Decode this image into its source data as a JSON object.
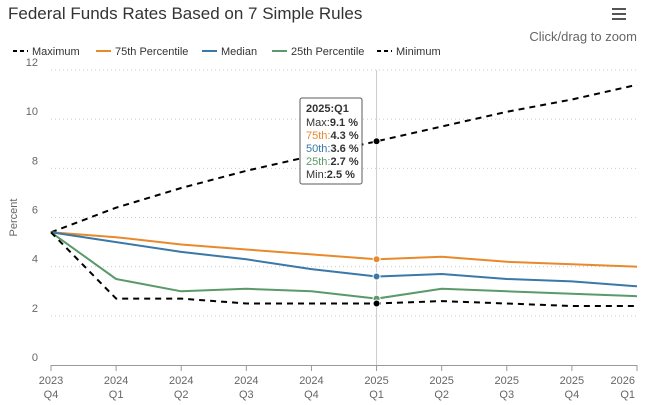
{
  "chart_data": {
    "type": "line",
    "title": "Federal Funds Rates Based on 7 Simple Rules",
    "zoom_hint": "Click/drag to zoom",
    "ylabel": "Percent",
    "ylim": [
      0,
      12
    ],
    "yticks": [
      "0",
      "2",
      "4",
      "6",
      "8",
      "10",
      "12"
    ],
    "categories": [
      [
        "2023",
        "Q4"
      ],
      [
        "2024",
        "Q1"
      ],
      [
        "2024",
        "Q2"
      ],
      [
        "2024",
        "Q3"
      ],
      [
        "2024",
        "Q4"
      ],
      [
        "2025",
        "Q1"
      ],
      [
        "2025",
        "Q2"
      ],
      [
        "2025",
        "Q3"
      ],
      [
        "2025",
        "Q4"
      ],
      [
        "2026",
        "Q1"
      ]
    ],
    "grid": true,
    "legend_position": "top",
    "series": [
      {
        "name": "Maximum",
        "color": "#000000",
        "dash": true,
        "values": [
          5.4,
          6.4,
          7.2,
          7.9,
          8.5,
          9.1,
          9.7,
          10.3,
          10.8,
          11.4
        ]
      },
      {
        "name": "75th Percentile",
        "color": "#e8892b",
        "dash": false,
        "values": [
          5.4,
          5.2,
          4.9,
          4.7,
          4.5,
          4.3,
          4.4,
          4.2,
          4.1,
          4.0
        ]
      },
      {
        "name": "Median",
        "color": "#3a78a8",
        "dash": false,
        "values": [
          5.4,
          5.0,
          4.6,
          4.3,
          3.9,
          3.6,
          3.7,
          3.5,
          3.4,
          3.2
        ]
      },
      {
        "name": "25th Percentile",
        "color": "#5a9a6a",
        "dash": false,
        "values": [
          5.4,
          3.5,
          3.0,
          3.1,
          3.0,
          2.7,
          3.1,
          3.0,
          2.9,
          2.8
        ]
      },
      {
        "name": "Minimum",
        "color": "#000000",
        "dash": true,
        "values": [
          5.4,
          2.7,
          2.7,
          2.5,
          2.5,
          2.5,
          2.6,
          2.5,
          2.4,
          2.4
        ]
      }
    ],
    "tooltip": {
      "index": 5,
      "header": "2025:Q1",
      "rows": [
        {
          "label": "Max:",
          "value": "9.1 %",
          "color": "#333333"
        },
        {
          "label": "75th:",
          "value": "4.3 %",
          "color": "#e8892b"
        },
        {
          "label": "50th:",
          "value": "3.6 %",
          "color": "#3a78a8"
        },
        {
          "label": "25th:",
          "value": "2.7 %",
          "color": "#5a9a6a"
        },
        {
          "label": "Min:",
          "value": "2.5 %",
          "color": "#333333"
        }
      ]
    }
  }
}
